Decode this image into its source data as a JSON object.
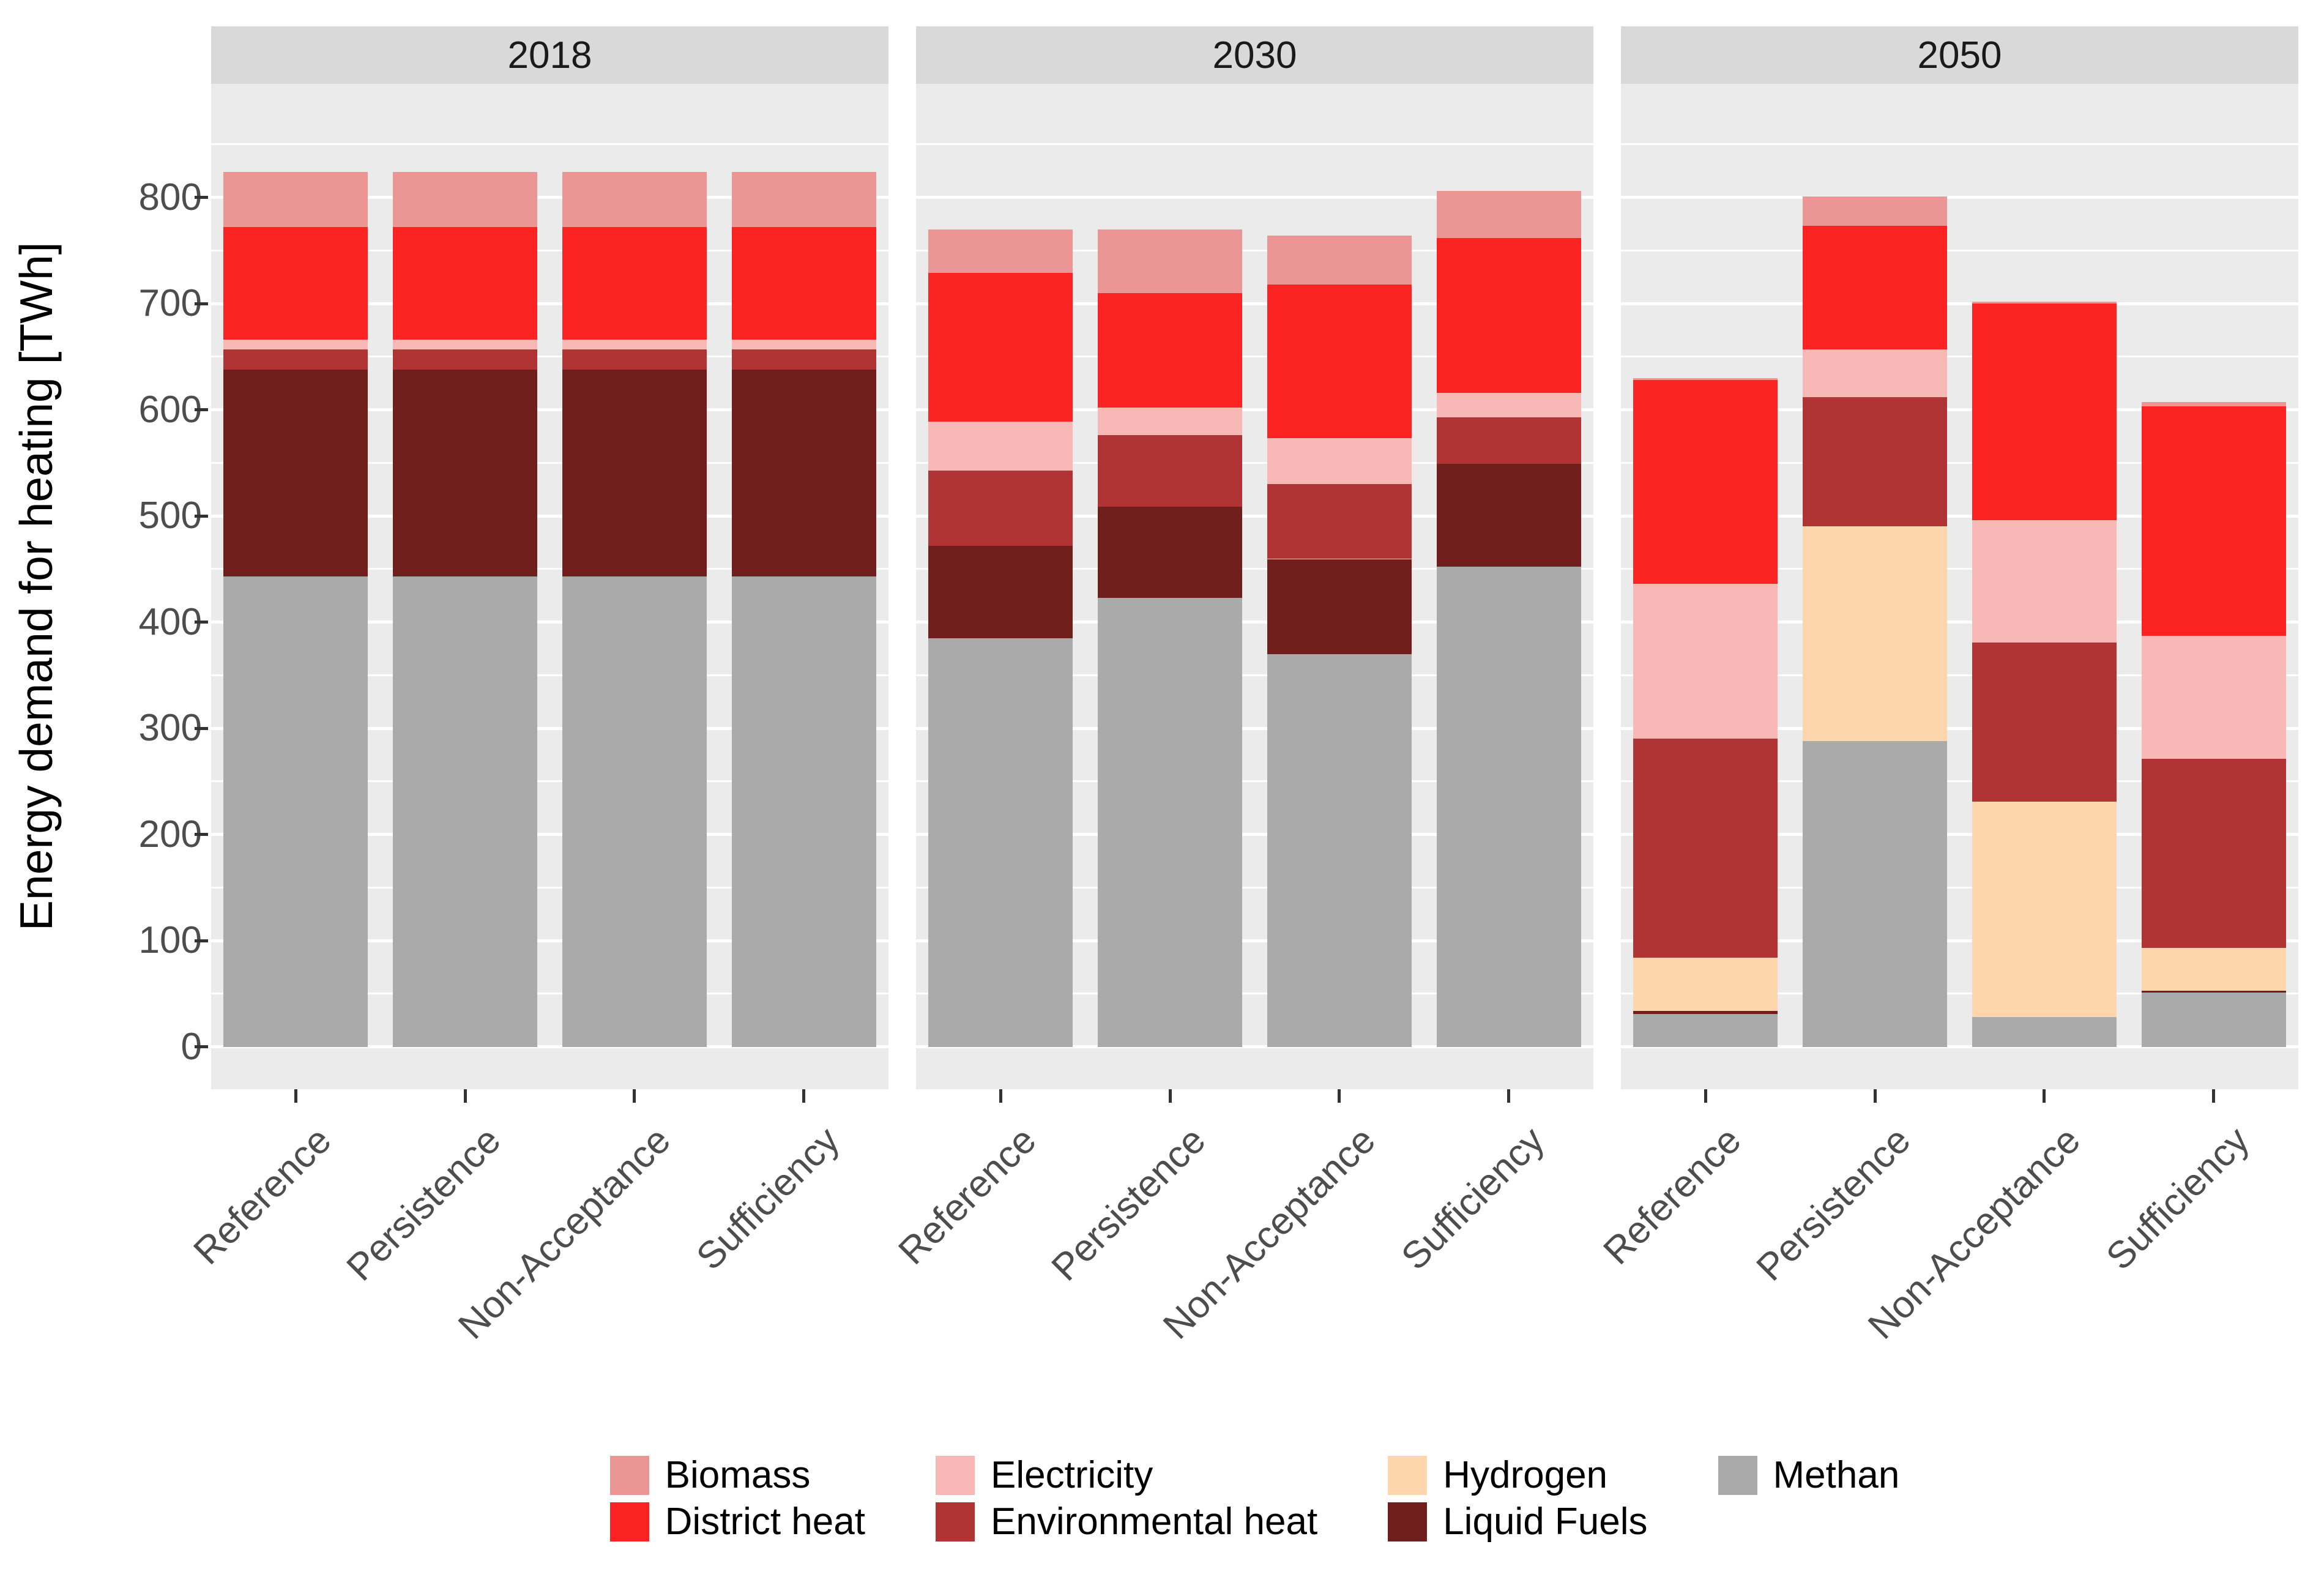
{
  "chart_data": {
    "type": "bar",
    "stacked": true,
    "orientation": "vertical",
    "title": "",
    "ylabel": "Energy demand for heating [TWh]",
    "xlabel": "",
    "ylim": [
      0,
      800
    ],
    "yticks": [
      0,
      100,
      200,
      300,
      400,
      500,
      600,
      700,
      800
    ],
    "grid": {
      "major": true,
      "minor": true,
      "major_step": 100,
      "minor_step": 50
    },
    "legend_position": "bottom",
    "facets": [
      "2018",
      "2030",
      "2050"
    ],
    "categories": [
      "Reference",
      "Persistence",
      "Non-Acceptance",
      "Sufficiency"
    ],
    "stack_order_bottom_to_top": [
      "Methan",
      "Liquid Fuels",
      "Hydrogen",
      "Environmental heat",
      "Electricity",
      "District heat",
      "Biomass"
    ],
    "series": [
      {
        "name": "Biomass",
        "color": "#EB9695",
        "values": {
          "2018": [
            52,
            52,
            52,
            52
          ],
          "2030": [
            41,
            60,
            46,
            44
          ],
          "2050": [
            2,
            28,
            2,
            4
          ]
        }
      },
      {
        "name": "District heat",
        "color": "#FB2222",
        "values": {
          "2018": [
            106,
            106,
            106,
            106
          ],
          "2030": [
            140,
            108,
            145,
            146
          ],
          "2050": [
            192,
            116,
            204,
            216
          ]
        }
      },
      {
        "name": "Electricity",
        "color": "#F7B8B6",
        "values": {
          "2018": [
            9,
            9,
            9,
            9
          ],
          "2030": [
            46,
            26,
            43,
            23
          ],
          "2050": [
            146,
            45,
            115,
            116
          ]
        }
      },
      {
        "name": "Environmental heat",
        "color": "#B03434",
        "values": {
          "2018": [
            19,
            19,
            19,
            19
          ],
          "2030": [
            71,
            67,
            70,
            44
          ],
          "2050": [
            206,
            122,
            150,
            178
          ]
        }
      },
      {
        "name": "Hydrogen",
        "color": "#FDD6AD",
        "values": {
          "2018": [
            0,
            0,
            0,
            0
          ],
          "2030": [
            0,
            0,
            1,
            0
          ],
          "2050": [
            50,
            202,
            203,
            40
          ]
        }
      },
      {
        "name": "Liquid Fuels",
        "color": "#701F1D",
        "values": {
          "2018": [
            195,
            195,
            195,
            195
          ],
          "2030": [
            87,
            86,
            89,
            97
          ],
          "2050": [
            3,
            0,
            0,
            2
          ]
        }
      },
      {
        "name": "Methan",
        "color": "#AAAAAA",
        "values": {
          "2018": [
            443,
            443,
            443,
            443
          ],
          "2030": [
            385,
            423,
            370,
            452
          ],
          "2050": [
            31,
            288,
            28,
            51
          ]
        }
      }
    ],
    "totals": {
      "2018": [
        824,
        824,
        824,
        824
      ],
      "2030": [
        770,
        770,
        764,
        806
      ],
      "2050": [
        630,
        801,
        702,
        607
      ]
    }
  },
  "legend": {
    "columns": [
      [
        "Biomass",
        "District heat"
      ],
      [
        "Electricity",
        "Environmental heat"
      ],
      [
        "Hydrogen",
        "Liquid Fuels"
      ],
      [
        "Methan"
      ]
    ]
  },
  "theme": {
    "panel_background": "#EBEBEB",
    "strip_background": "#D9D9D9",
    "grid_color": "#FFFFFF",
    "tick_text_color": "#4D4D4D",
    "strip_text_color": "#1A1A1A",
    "tick_mark_color": "#333333",
    "page_background": "#FFFFFF"
  }
}
